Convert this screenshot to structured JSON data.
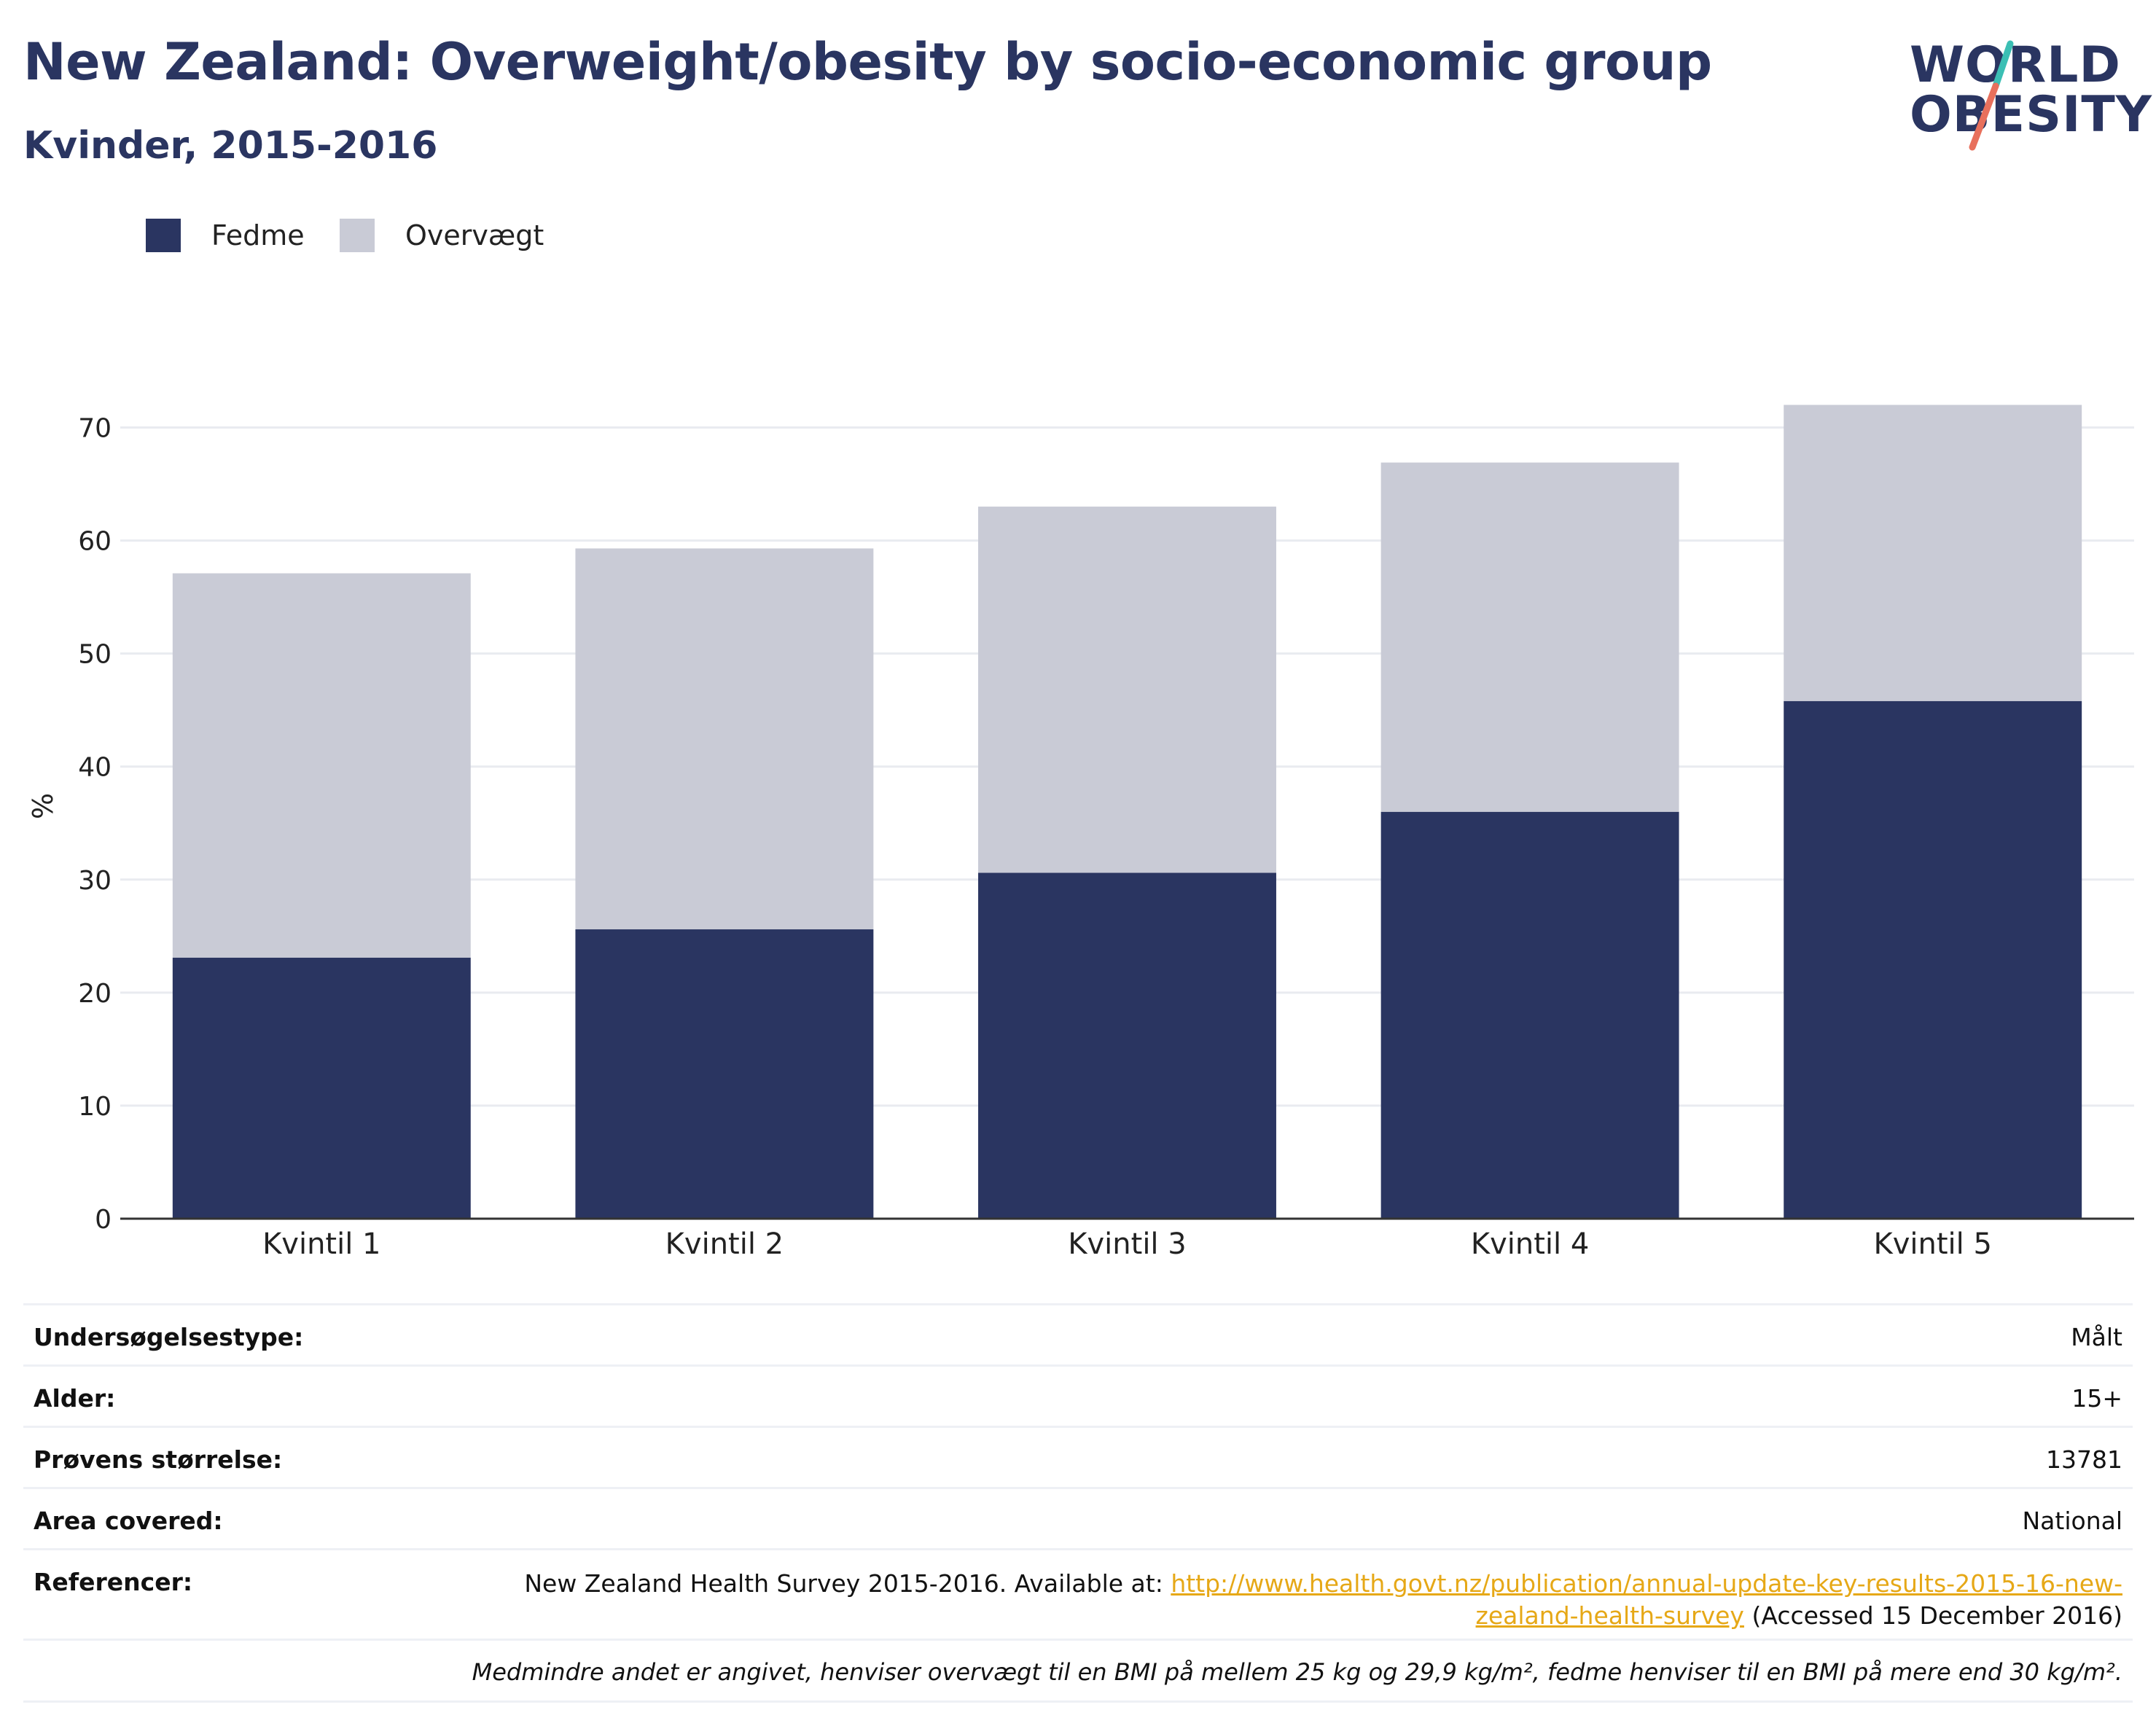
{
  "header": {
    "title": "New Zealand: Overweight/obesity by socio-economic group",
    "subtitle": "Kvinder, 2015-2016"
  },
  "logo": {
    "line1": "WORLD",
    "line2": "OBESITY",
    "colors": {
      "text": "#2a3561",
      "slash_top": "#3bbfb4",
      "slash_bottom": "#e8705c"
    }
  },
  "legend": [
    {
      "label": "Fedme",
      "color": "#2a3561"
    },
    {
      "label": "Overvægt",
      "color": "#c9cbd6"
    }
  ],
  "chart_data": {
    "type": "bar",
    "stacked": true,
    "categories": [
      "Kvintil 1",
      "Kvintil 2",
      "Kvintil 3",
      "Kvintil 4",
      "Kvintil 5"
    ],
    "series": [
      {
        "name": "Fedme",
        "color": "#2a3561",
        "values": [
          23.1,
          25.6,
          30.6,
          36.0,
          45.8
        ]
      },
      {
        "name": "Overvægt",
        "color": "#c9cbd6",
        "values": [
          34.0,
          33.7,
          32.4,
          30.9,
          26.2
        ]
      }
    ],
    "ylabel": "%",
    "ylim": [
      0,
      73
    ],
    "yticks": [
      0,
      10,
      20,
      30,
      40,
      50,
      60,
      70
    ],
    "grid": true,
    "legend_position": "top-left"
  },
  "info": {
    "rows": [
      {
        "key": "Undersøgelsestype:",
        "value": "Målt"
      },
      {
        "key": "Alder:",
        "value": "15+"
      },
      {
        "key": "Prøvens størrelse:",
        "value": "13781"
      },
      {
        "key": "Area covered:",
        "value": "National"
      }
    ],
    "reference": {
      "key": "Referencer:",
      "prefix": "New Zealand Health Survey 2015-2016. Available at: ",
      "link": "http://www.health.govt.nz/publication/annual-update-key-results-2015-16-new-zealand-health-survey",
      "suffix": " (Accessed 15 December 2016)"
    },
    "note": "Medmindre andet er angivet, henviser overvægt til en BMI på mellem 25 kg og 29,9 kg/m², fedme henviser til en BMI på mere end 30 kg/m²."
  }
}
